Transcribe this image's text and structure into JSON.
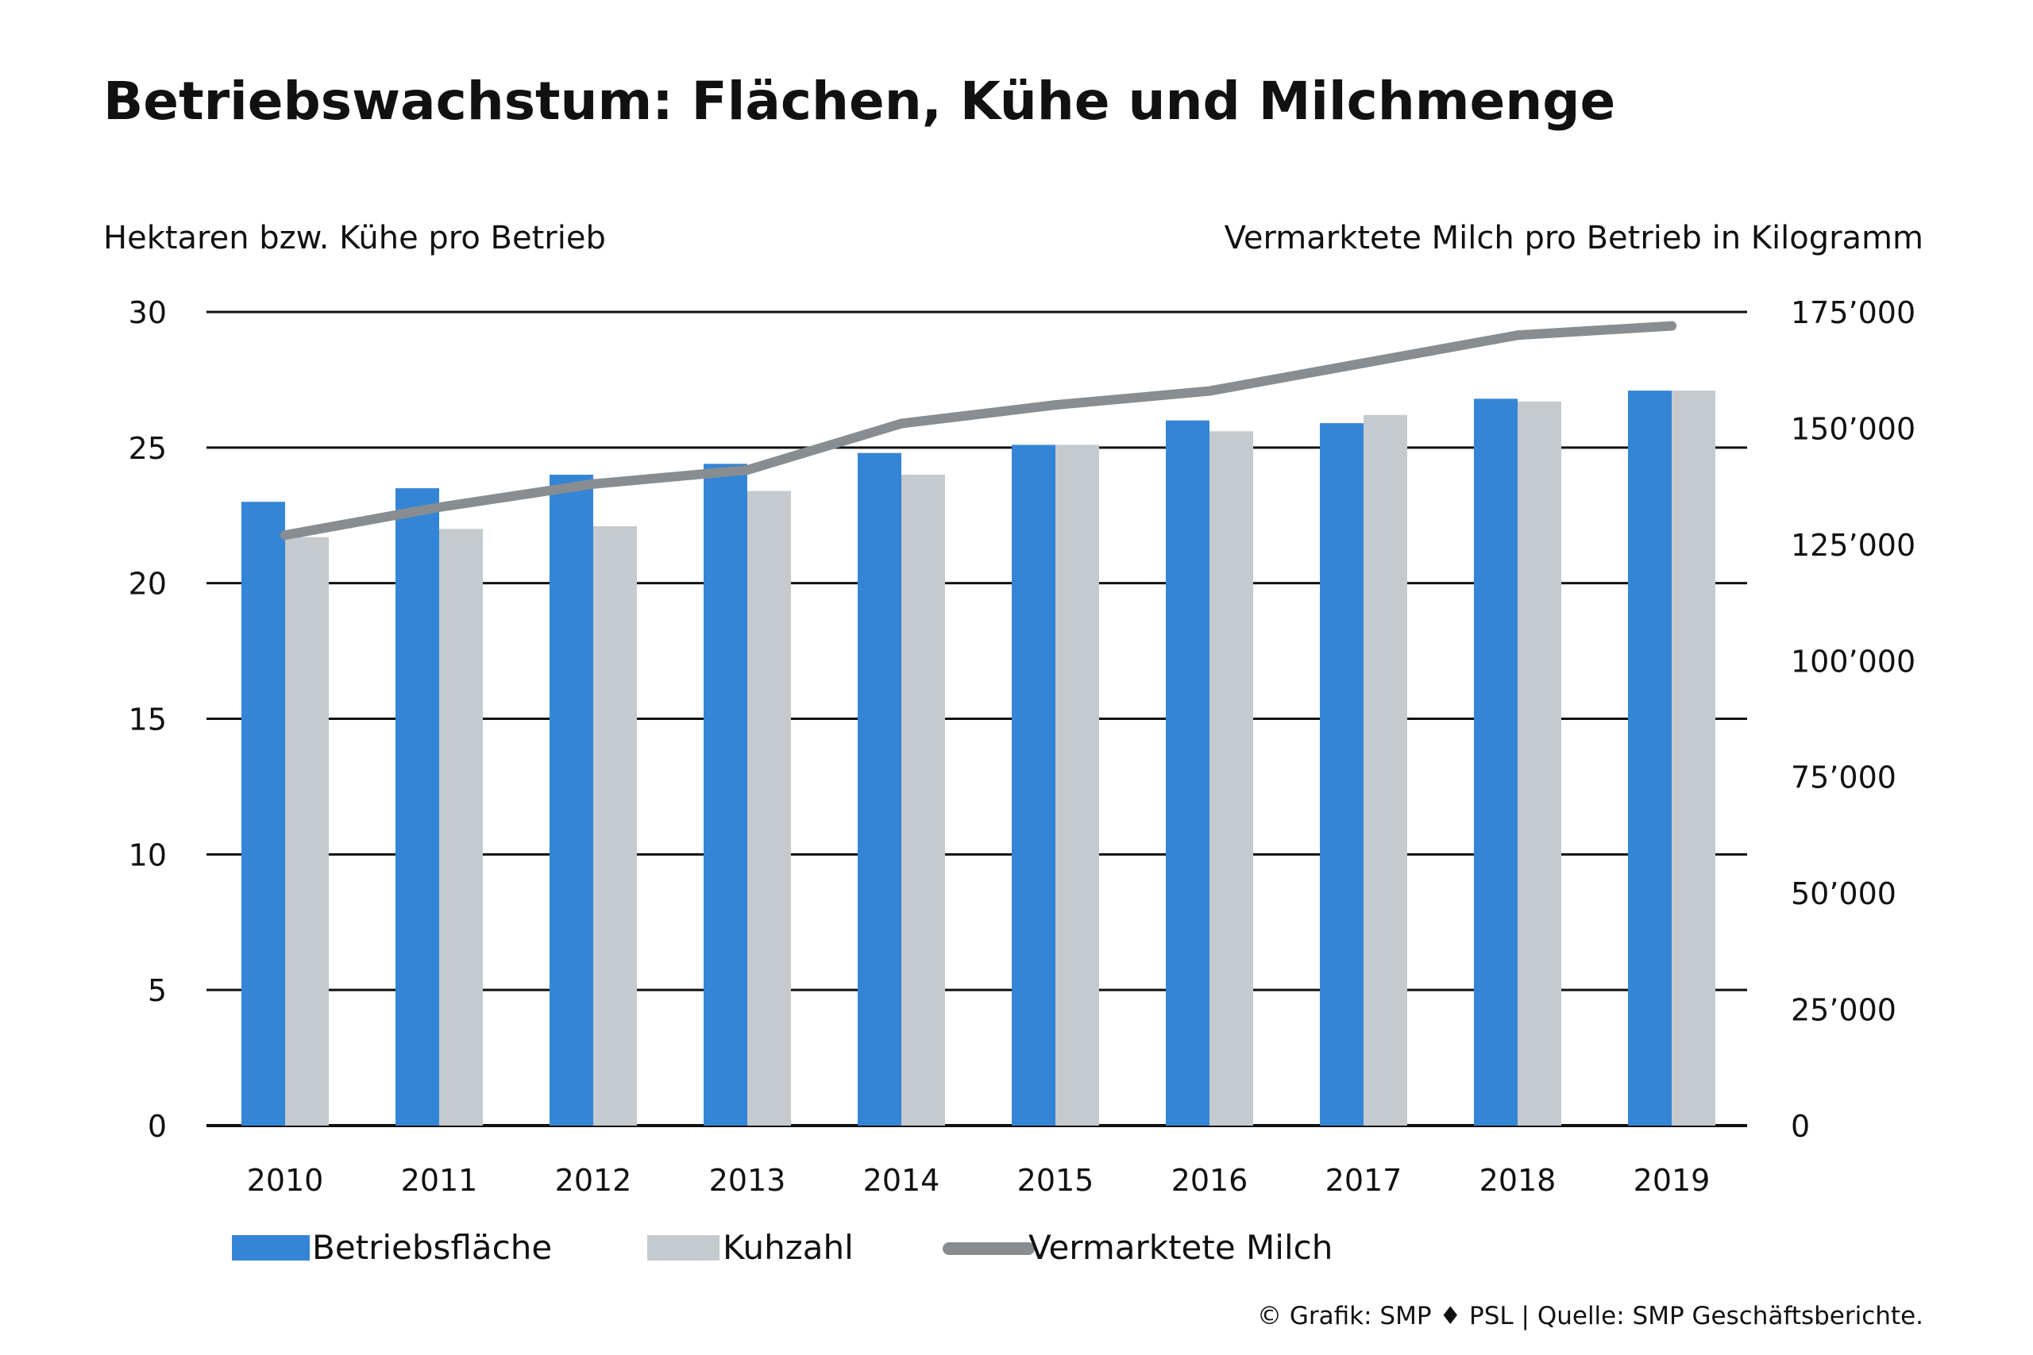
{
  "chart_data": {
    "type": "bar",
    "title": "Betriebswachstum: Flächen, Kühe und Milchmenge",
    "ylabel": "Hektaren bzw. Kühe pro Betrieb",
    "y2label": "Vermarktete Milch pro Betrieb in Kilogramm",
    "categories": [
      "2010",
      "2011",
      "2012",
      "2013",
      "2014",
      "2015",
      "2016",
      "2017",
      "2018",
      "2019"
    ],
    "ylim": [
      0,
      30
    ],
    "y_ticks": [
      "0",
      "5",
      "10",
      "15",
      "20",
      "25",
      "30"
    ],
    "y_tick_values": [
      0,
      5,
      10,
      15,
      20,
      25,
      30
    ],
    "y2lim": [
      0,
      175000
    ],
    "y2_ticks": [
      "0",
      "25’000",
      "50’000",
      "75’000",
      "100’000",
      "125’000",
      "150’000",
      "175’000"
    ],
    "y2_tick_values": [
      0,
      25000,
      50000,
      75000,
      100000,
      125000,
      150000,
      175000
    ],
    "grid": "horizontal",
    "legend_position": "bottom-left",
    "series": [
      {
        "name": "Betriebsfläche",
        "kind": "bar",
        "axis": "left",
        "color": "#3585d6",
        "values": [
          23.0,
          23.5,
          24.0,
          24.4,
          24.8,
          25.1,
          26.0,
          25.9,
          26.8,
          27.1
        ]
      },
      {
        "name": "Kuhzahl",
        "kind": "bar",
        "axis": "left",
        "color": "#c4cacd",
        "values": [
          21.7,
          22.0,
          22.1,
          23.4,
          24.0,
          25.1,
          25.6,
          26.2,
          26.7,
          27.1
        ]
      },
      {
        "name": "Vermarktete Milch",
        "kind": "line",
        "axis": "right",
        "color": "#878d91",
        "values": [
          127000,
          133000,
          138000,
          141000,
          151000,
          155000,
          158000,
          164000,
          170000,
          172000
        ]
      }
    ],
    "source": "© Grafik: SMP ♦ PSL | Quelle: SMP Geschäftsberichte."
  }
}
